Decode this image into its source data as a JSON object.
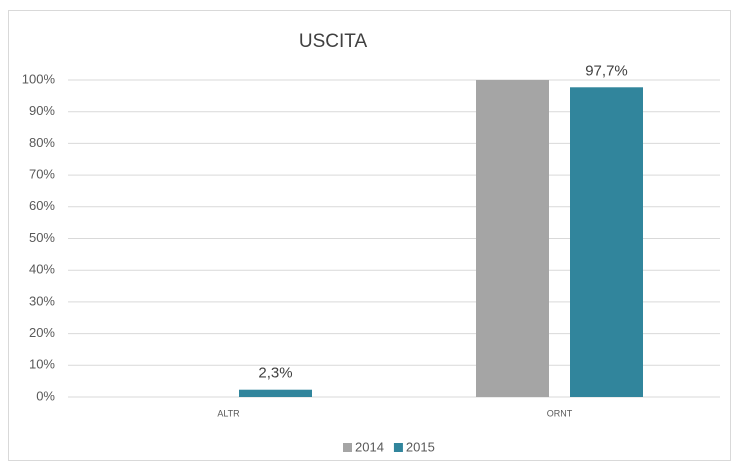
{
  "chart_data": {
    "type": "bar",
    "title": "USCITA",
    "categories": [
      "ALTR",
      "ORNT"
    ],
    "series": [
      {
        "name": "2014",
        "color": "#a5a5a5",
        "values": [
          0,
          100
        ]
      },
      {
        "name": "2015",
        "color": "#31859c",
        "values": [
          2.3,
          97.7
        ],
        "value_labels": [
          "2,3%",
          "97,7%"
        ]
      }
    ],
    "ylim": [
      0,
      100
    ],
    "yticks": [
      {
        "value": 0,
        "label": "0%"
      },
      {
        "value": 10,
        "label": "10%"
      },
      {
        "value": 20,
        "label": "20%"
      },
      {
        "value": 30,
        "label": "30%"
      },
      {
        "value": 40,
        "label": "40%"
      },
      {
        "value": 50,
        "label": "50%"
      },
      {
        "value": 60,
        "label": "60%"
      },
      {
        "value": 70,
        "label": "70%"
      },
      {
        "value": 80,
        "label": "80%"
      },
      {
        "value": 90,
        "label": "90%"
      },
      {
        "value": 100,
        "label": "100%"
      }
    ],
    "grid": true,
    "legend": "bottom"
  }
}
